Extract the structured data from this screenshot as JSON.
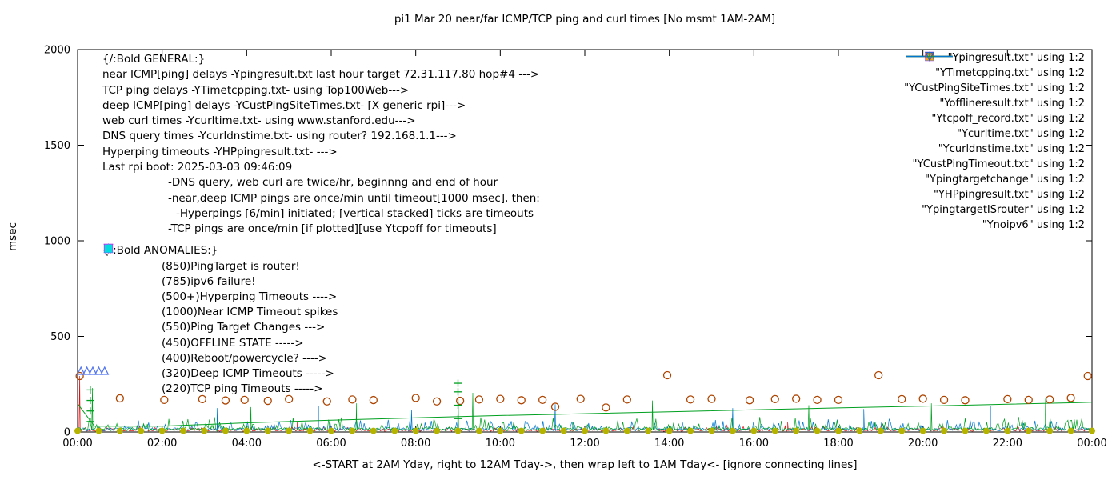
{
  "chart_data": {
    "type": "line",
    "title": "pi1 Mar 20  near/far ICMP/TCP ping and curl times [No msmt 1AM-2AM]",
    "ylabel": "msec",
    "xlabel": "<-START at 2AM Yday, right to 12AM Tday->, then wrap left to 1AM Tday<- [ignore connecting lines]",
    "ylim": [
      0,
      2000
    ],
    "xlim_hours": [
      0,
      24
    ],
    "y_ticks": [
      0,
      500,
      1000,
      1500,
      2000
    ],
    "x_ticks": {
      "hours": [
        0,
        2,
        4,
        6,
        8,
        10,
        12,
        14,
        16,
        18,
        20,
        22,
        24
      ],
      "labels": [
        "00:00",
        "02:00",
        "04:00",
        "06:00",
        "08:00",
        "10:00",
        "12:00",
        "14:00",
        "16:00",
        "18:00",
        "20:00",
        "22:00",
        "00:00"
      ]
    },
    "legend": [
      {
        "label": "\"Ypingresult.txt\" using 1:2",
        "marker": "line",
        "color": "#e01010"
      },
      {
        "label": "\"YTimetcpping.txt\" using 1:2",
        "marker": "line",
        "color": "#00a020"
      },
      {
        "label": "\"YCustPingSiteTimes.txt\" using 1:2",
        "marker": "line",
        "color": "#0077cc"
      },
      {
        "label": "\"Yofflineresult.txt\" using 1:2",
        "marker": "square-open",
        "color": "#ff00ff"
      },
      {
        "label": "\"Ytcpoff_record.txt\" using 1:2",
        "marker": "square-filled",
        "color": "#00dddd"
      },
      {
        "label": "\"Ycurltime.txt\" using 1:2",
        "marker": "circle-open",
        "color": "#ad4400"
      },
      {
        "label": "\"Ycurldnstime.txt\" using 1:2",
        "marker": "circle-filled",
        "color": "#b3b300"
      },
      {
        "label": "\"YCustPingTimeout.txt\" using 1:2",
        "marker": "triangle-up-open",
        "color": "#5577ee"
      },
      {
        "label": "\"Ypingtargetchange\" using 1:2",
        "marker": "triangle-up-filled",
        "color": "#ffa500"
      },
      {
        "label": "\"YHPpingresult.txt\" using 1:2",
        "marker": "plus",
        "color": "#00a020"
      },
      {
        "label": "\"YpingtargetISrouter\" using 1:2",
        "marker": "triangle-down-open",
        "color": "#ee82ee"
      },
      {
        "label": "\"Ynoipv6\" using 1:2",
        "marker": "triangle-down-open",
        "color": "#2a5fc4"
      }
    ],
    "annotations": {
      "general_header": "{/:Bold GENERAL:}",
      "general_lines": [
        "near ICMP[ping] delays -Ypingresult.txt last hour target 72.31.117.80 hop#4 --->",
        "TCP ping delays -YTimetcpping.txt- using Top100Web--->",
        "deep ICMP[ping] delays -YCustPingSiteTimes.txt- [X generic rpi]--->",
        "web curl times -Ycurltime.txt- using www.stanford.edu--->",
        "DNS query times -Ycurldnstime.txt- using router? 192.168.1.1--->",
        "Hyperping timeouts -YHPpingresult.txt- --->",
        "Last rpi boot: 2025-03-03 09:46:09"
      ],
      "notes": [
        {
          "text": "-DNS query, web curl are twice/hr, beginnng and end of hour",
          "indent": 1
        },
        {
          "text": "-near,deep ICMP pings are once/min until timeout[1000 msec], then:",
          "indent": 1
        },
        {
          "text": "-Hyperpings [6/min] initiated; [vertical stacked] ticks are timeouts",
          "indent": 2
        },
        {
          "text": "-TCP pings are once/min [if plotted][use Ytcpoff for timeouts]",
          "indent": 1
        }
      ],
      "anomalies_header": "{/:Bold ANOMALIES:}",
      "anomalies": [
        {
          "marker": "triangle-down-open",
          "color": "#ee82ee",
          "text": "(850)PingTarget is router!"
        },
        {
          "marker": "triangle-down-open",
          "color": "#2a5fc4",
          "text": "(785)ipv6 failure!"
        },
        {
          "marker": "plus",
          "color": "#00a020",
          "text": "(500+)Hyperping Timeouts ---->"
        },
        {
          "marker": "none",
          "color": "",
          "text": "(1000)Near ICMP Timeout spikes"
        },
        {
          "marker": "triangle-up-filled",
          "color": "#ffa500",
          "text": "(550)Ping Target Changes --->"
        },
        {
          "marker": "square-open",
          "color": "#ff00ff",
          "text": "(450)OFFLINE STATE ----->"
        },
        {
          "marker": "none",
          "color": "",
          "text": "(400)Reboot/powercycle? ---->"
        },
        {
          "marker": "triangle-up-open",
          "color": "#5577ee",
          "text": "(320)Deep ICMP Timeouts ----->"
        },
        {
          "marker": "square-filled",
          "color": "#00dddd",
          "text": "(220)TCP ping Timeouts ----->"
        }
      ]
    },
    "series": [
      {
        "name": "Ypingresult.txt",
        "type": "noisy-line",
        "color": "#e01010",
        "base": 10,
        "amp": 22,
        "seed": 11,
        "spikes": [
          [
            0.05,
            293
          ],
          [
            5.2,
            55
          ],
          [
            16.8,
            50
          ]
        ]
      },
      {
        "name": "YCustPingSiteTimes.txt",
        "type": "noisy-line",
        "color": "#0077cc",
        "base": 14,
        "amp": 52,
        "seed": 37,
        "spikes": [
          [
            3.3,
            125
          ],
          [
            5.7,
            135
          ],
          [
            7.9,
            115
          ],
          [
            11.3,
            145
          ],
          [
            15.5,
            125
          ],
          [
            18.6,
            120
          ],
          [
            21.6,
            135
          ]
        ]
      },
      {
        "name": "YTimetcpping.txt",
        "type": "noisy-line",
        "color": "#00a020",
        "base": 15,
        "amp": 70,
        "seed": 23,
        "spikes": [
          [
            0.35,
            230
          ],
          [
            4.1,
            130
          ],
          [
            6.6,
            150
          ],
          [
            9.0,
            255
          ],
          [
            9.35,
            205
          ],
          [
            13.6,
            165
          ],
          [
            17.3,
            140
          ],
          [
            20.2,
            150
          ],
          [
            22.9,
            175
          ]
        ]
      },
      {
        "name": "YTimetcpping-trend",
        "type": "line",
        "color": "#00a020",
        "points": [
          [
            0,
            148
          ],
          [
            0.4,
            30
          ],
          [
            2,
            30
          ],
          [
            4,
            48
          ],
          [
            6,
            62
          ],
          [
            8,
            74
          ],
          [
            10,
            86
          ],
          [
            12,
            96
          ],
          [
            14,
            106
          ],
          [
            16,
            116
          ],
          [
            18,
            126
          ],
          [
            20,
            135
          ],
          [
            22,
            145
          ],
          [
            23.6,
            153
          ],
          [
            24,
            156
          ]
        ]
      },
      {
        "name": "Ycurltime.txt",
        "type": "points",
        "marker": "circle-open",
        "color": "#ad4400",
        "points": [
          [
            0.05,
            293
          ],
          [
            1.0,
            176
          ],
          [
            2.05,
            168
          ],
          [
            2.95,
            172
          ],
          [
            3.5,
            165
          ],
          [
            3.95,
            168
          ],
          [
            4.5,
            163
          ],
          [
            5.0,
            172
          ],
          [
            5.9,
            160
          ],
          [
            6.5,
            170
          ],
          [
            7.0,
            167
          ],
          [
            8.0,
            178
          ],
          [
            8.5,
            160
          ],
          [
            9.05,
            163
          ],
          [
            9.5,
            170
          ],
          [
            10.0,
            173
          ],
          [
            10.5,
            166
          ],
          [
            11.0,
            168
          ],
          [
            11.3,
            132
          ],
          [
            11.9,
            173
          ],
          [
            12.5,
            128
          ],
          [
            13.0,
            170
          ],
          [
            13.95,
            297
          ],
          [
            14.5,
            170
          ],
          [
            15.0,
            173
          ],
          [
            15.9,
            166
          ],
          [
            16.5,
            172
          ],
          [
            17.0,
            174
          ],
          [
            17.5,
            168
          ],
          [
            18.0,
            168
          ],
          [
            18.95,
            297
          ],
          [
            19.5,
            172
          ],
          [
            20.0,
            174
          ],
          [
            20.5,
            168
          ],
          [
            21.0,
            166
          ],
          [
            22.0,
            172
          ],
          [
            22.5,
            168
          ],
          [
            23.0,
            170
          ],
          [
            23.5,
            178
          ],
          [
            23.9,
            293
          ]
        ]
      },
      {
        "name": "Ycurldnstime.txt",
        "type": "points-range",
        "marker": "circle-filled",
        "color": "#b3b300",
        "x_start": 0,
        "x_end": 24,
        "x_step": 0.5,
        "y": 6
      },
      {
        "name": "YCustPingTimeout.txt",
        "type": "points",
        "marker": "triangle-up-open",
        "color": "#5577ee",
        "points": [
          [
            0.08,
            320
          ],
          [
            0.22,
            320
          ],
          [
            0.36,
            320
          ],
          [
            0.5,
            320
          ],
          [
            0.64,
            320
          ]
        ]
      },
      {
        "name": "YHPpingresult.txt",
        "type": "points",
        "marker": "plus",
        "color": "#00a020",
        "points": [
          [
            0.3,
            55
          ],
          [
            0.3,
            110
          ],
          [
            0.3,
            165
          ],
          [
            0.3,
            220
          ],
          [
            9.0,
            70
          ],
          [
            9.0,
            140
          ],
          [
            9.0,
            210
          ],
          [
            9.0,
            255
          ]
        ]
      },
      {
        "name": "Yofflineresult.txt",
        "type": "points",
        "marker": "square-open",
        "color": "#ff00ff",
        "points": []
      },
      {
        "name": "Ytcpoff_record.txt",
        "type": "points",
        "marker": "square-filled",
        "color": "#00dddd",
        "points": []
      },
      {
        "name": "Ypingtargetchange",
        "type": "points",
        "marker": "triangle-up-filled",
        "color": "#ffa500",
        "points": []
      },
      {
        "name": "YpingtargetISrouter",
        "type": "points",
        "marker": "triangle-down-open",
        "color": "#ee82ee",
        "points": []
      },
      {
        "name": "Ynoipv6",
        "type": "points",
        "marker": "triangle-down-open",
        "color": "#2a5fc4",
        "points": []
      }
    ]
  }
}
